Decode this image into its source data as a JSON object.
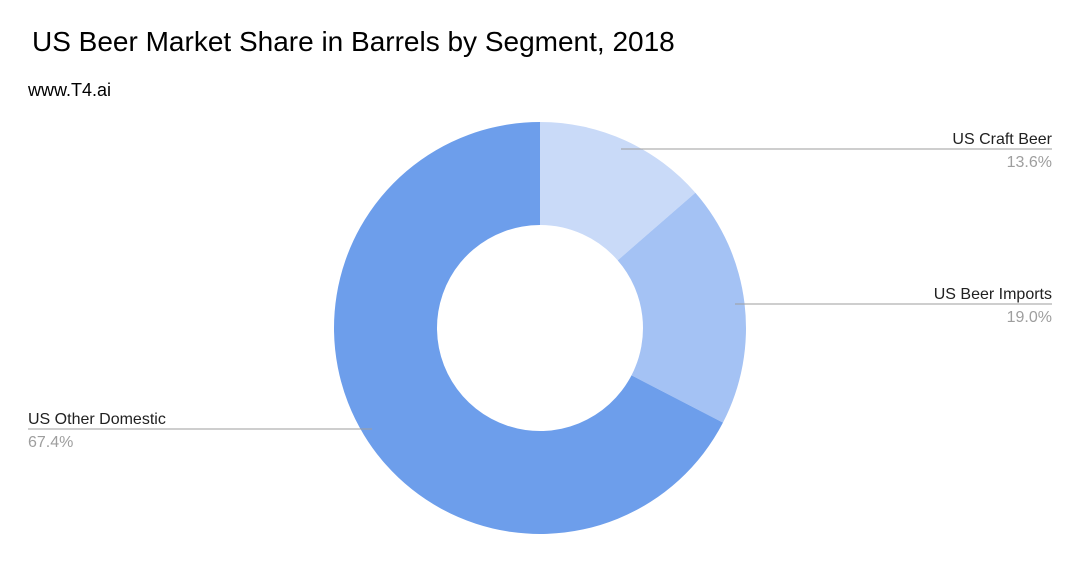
{
  "title": "US Beer Market Share in Barrels by Segment, 2018",
  "subtitle": "www.T4.ai",
  "chart_data": {
    "type": "pie",
    "variant": "donut",
    "slices": [
      {
        "label": "US Craft Beer",
        "value": 13.6,
        "value_label": "13.6%",
        "color": "#c9daf8"
      },
      {
        "label": "US Beer Imports",
        "value": 19.0,
        "value_label": "19.0%",
        "color": "#a4c2f4"
      },
      {
        "label": "US Other Domestic",
        "value": 67.4,
        "value_label": "67.4%",
        "color": "#6d9eeb"
      }
    ],
    "legend": "none (labels beside slices with leader lines)"
  }
}
